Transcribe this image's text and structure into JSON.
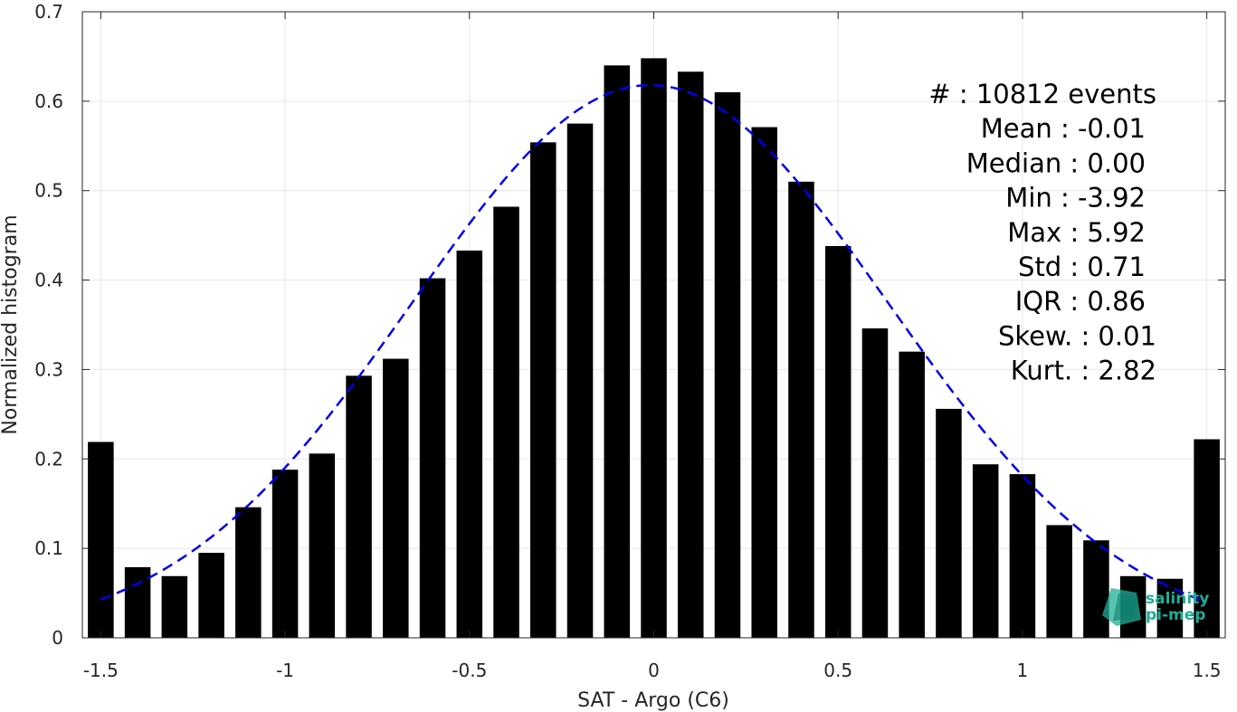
{
  "chart_data": {
    "type": "bar",
    "xlabel": "SAT - Argo (C6)",
    "ylabel": "Normalized histogram",
    "xlim": [
      -1.55,
      1.55
    ],
    "ylim": [
      0,
      0.7
    ],
    "xticks": [
      -1.5,
      -1,
      -0.5,
      0,
      0.5,
      1,
      1.5
    ],
    "xtick_labels": [
      "-1.5",
      "-1",
      "-0.5",
      "0",
      "0.5",
      "1",
      "1.5"
    ],
    "yticks": [
      0,
      0.1,
      0.2,
      0.3,
      0.4,
      0.5,
      0.6,
      0.7
    ],
    "ytick_labels": [
      "0",
      "0.1",
      "0.2",
      "0.3",
      "0.4",
      "0.5",
      "0.6",
      "0.7"
    ],
    "grid": true,
    "bar_color": "#000000",
    "fit_color": "#0000ee",
    "bins": [
      {
        "x": -1.5,
        "value": 0.219
      },
      {
        "x": -1.4,
        "value": 0.079
      },
      {
        "x": -1.3,
        "value": 0.069
      },
      {
        "x": -1.2,
        "value": 0.095
      },
      {
        "x": -1.1,
        "value": 0.146
      },
      {
        "x": -1.0,
        "value": 0.188
      },
      {
        "x": -0.9,
        "value": 0.206
      },
      {
        "x": -0.8,
        "value": 0.293
      },
      {
        "x": -0.7,
        "value": 0.312
      },
      {
        "x": -0.6,
        "value": 0.402
      },
      {
        "x": -0.5,
        "value": 0.433
      },
      {
        "x": -0.4,
        "value": 0.482
      },
      {
        "x": -0.3,
        "value": 0.554
      },
      {
        "x": -0.2,
        "value": 0.575
      },
      {
        "x": -0.1,
        "value": 0.64
      },
      {
        "x": 0.0,
        "value": 0.648
      },
      {
        "x": 0.1,
        "value": 0.633
      },
      {
        "x": 0.2,
        "value": 0.61
      },
      {
        "x": 0.3,
        "value": 0.571
      },
      {
        "x": 0.4,
        "value": 0.51
      },
      {
        "x": 0.5,
        "value": 0.438
      },
      {
        "x": 0.6,
        "value": 0.346
      },
      {
        "x": 0.7,
        "value": 0.32
      },
      {
        "x": 0.8,
        "value": 0.256
      },
      {
        "x": 0.9,
        "value": 0.194
      },
      {
        "x": 1.0,
        "value": 0.183
      },
      {
        "x": 1.1,
        "value": 0.126
      },
      {
        "x": 1.2,
        "value": 0.109
      },
      {
        "x": 1.3,
        "value": 0.069
      },
      {
        "x": 1.4,
        "value": 0.066
      },
      {
        "x": 1.5,
        "value": 0.222
      }
    ],
    "fit_curve": {
      "type": "gaussian",
      "mean": -0.01,
      "std": 0.645,
      "peak": 0.618,
      "x_range": [
        -1.5,
        1.5
      ]
    },
    "stats": [
      {
        "label": "#  : 10812 events"
      },
      {
        "label": "Mean : -0.01"
      },
      {
        "label": "Median : 0.00"
      },
      {
        "label": "Min : -3.92"
      },
      {
        "label": "Max : 5.92"
      },
      {
        "label": "Std : 0.71"
      },
      {
        "label": "IQR : 0.86"
      },
      {
        "label": "Skew. : 0.01"
      },
      {
        "label": "Kurt. : 2.82"
      }
    ]
  },
  "logo": {
    "line1": "salinity",
    "line2": "pi-mep",
    "color": "#1fae95"
  }
}
